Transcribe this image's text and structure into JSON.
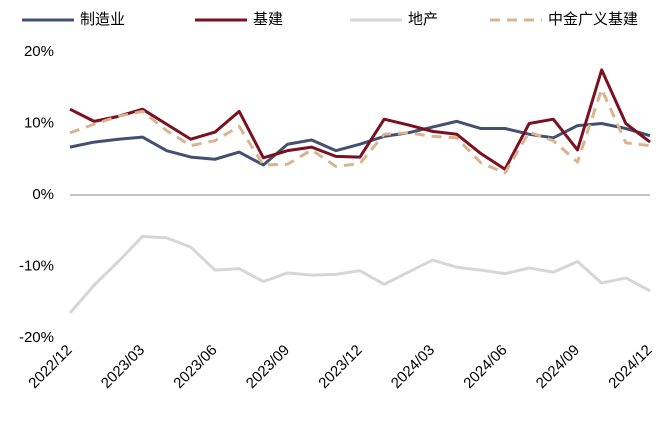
{
  "chart_data": {
    "type": "line",
    "categories": [
      "2022/12",
      null,
      null,
      "2023/03",
      null,
      null,
      "2023/06",
      null,
      null,
      "2023/09",
      null,
      null,
      "2023/12",
      null,
      null,
      "2024/03",
      null,
      null,
      "2024/06",
      null,
      null,
      "2024/09",
      null,
      null,
      "2024/12"
    ],
    "series": [
      {
        "name": "制造业",
        "color": "#44506f",
        "dash": false,
        "values": [
          6.7,
          7.4,
          7.8,
          8.1,
          6.2,
          5.3,
          5.0,
          6.0,
          4.2,
          7.1,
          7.7,
          6.2,
          7.1,
          8.2,
          8.7,
          9.5,
          10.3,
          9.3,
          9.3,
          8.5,
          8.0,
          9.7,
          10.0,
          9.3,
          8.3
        ]
      },
      {
        "name": "基建",
        "color": "#7b1020",
        "dash": false,
        "values": [
          12.0,
          10.3,
          11.0,
          12.0,
          9.9,
          7.8,
          8.8,
          11.7,
          5.2,
          6.2,
          6.7,
          5.4,
          5.3,
          10.6,
          9.8,
          8.9,
          8.5,
          5.8,
          3.6,
          10.0,
          10.6,
          6.3,
          17.5,
          10.0,
          7.4
        ]
      },
      {
        "name": "地产",
        "color": "#d6d6d6",
        "dash": false,
        "values": [
          -16.5,
          -12.6,
          -9.3,
          -5.8,
          -6.0,
          -7.3,
          -10.5,
          -10.3,
          -12.1,
          -10.9,
          -11.2,
          -11.1,
          -10.6,
          -12.5,
          -10.8,
          -9.1,
          -10.1,
          -10.5,
          -11.0,
          -10.2,
          -10.8,
          -9.3,
          -12.3,
          -11.6,
          -13.4
        ]
      },
      {
        "name": "中金广义基建",
        "color": "#d9b48f",
        "dash": true,
        "values": [
          8.7,
          9.9,
          11.0,
          11.7,
          9.0,
          6.9,
          7.6,
          9.6,
          4.2,
          4.3,
          6.3,
          4.0,
          4.4,
          8.5,
          8.7,
          8.2,
          8.0,
          4.5,
          3.1,
          8.8,
          7.6,
          4.6,
          14.8,
          7.3,
          6.9
        ]
      }
    ],
    "ylim": [
      -20,
      20
    ],
    "yticks": [
      {
        "value": -20,
        "label": "-20%"
      },
      {
        "value": -10,
        "label": "-10%"
      },
      {
        "value": 0,
        "label": "0%"
      },
      {
        "value": 10,
        "label": "10%"
      },
      {
        "value": 20,
        "label": "20%"
      }
    ],
    "legend": "top"
  }
}
